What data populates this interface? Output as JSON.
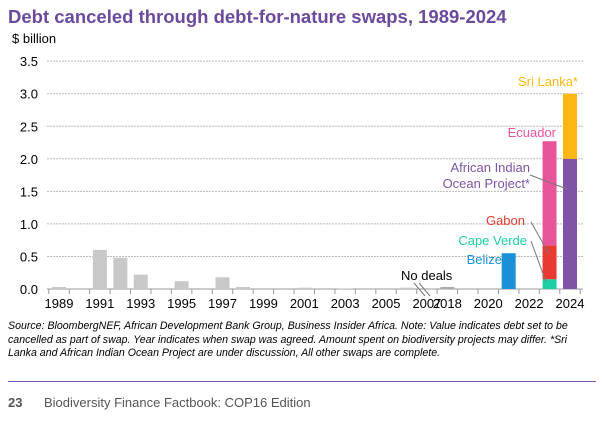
{
  "chart_data": {
    "type": "bar",
    "stacked": true,
    "title": "Debt canceled through debt-for-nature swaps, 1989-2024",
    "ylabel": "$ billion",
    "ylim": [
      0,
      3.5
    ],
    "yticks": [
      "0.0",
      "0.5",
      "1.0",
      "1.5",
      "2.0",
      "2.5",
      "3.0",
      "3.5"
    ],
    "grid": true,
    "categories": [
      "1989",
      "1990",
      "1991",
      "1992",
      "1993",
      "1994",
      "1995",
      "1996",
      "1997",
      "1998",
      "1999",
      "2000",
      "2001",
      "2002",
      "2003",
      "2004",
      "2005",
      "2006",
      "2007",
      "2018",
      "2019",
      "2020",
      "2021",
      "2022",
      "2023",
      "2024"
    ],
    "xtick_labels": [
      "1989",
      "1991",
      "1993",
      "1995",
      "1997",
      "1999",
      "2001",
      "2003",
      "2005",
      "2007",
      "2018",
      "2020",
      "2022",
      "2024"
    ],
    "axis_break_annotation": "No deals",
    "series": [
      {
        "name": "",
        "color": "#c8c8c8",
        "values": [
          0.03,
          0,
          0.6,
          0.48,
          0.22,
          0,
          0.12,
          0,
          0.18,
          0.03,
          0,
          0,
          0.02,
          0,
          0.01,
          0,
          0,
          0.02,
          0,
          0.03,
          0,
          0,
          0,
          0,
          0,
          0
        ]
      },
      {
        "name": "Belize",
        "color": "#1a90d8",
        "values": [
          0,
          0,
          0,
          0,
          0,
          0,
          0,
          0,
          0,
          0,
          0,
          0,
          0,
          0,
          0,
          0,
          0,
          0,
          0,
          0,
          0,
          0,
          0.55,
          0,
          0,
          0
        ]
      },
      {
        "name": "Cape Verde",
        "color": "#1ccfa5",
        "values": [
          0,
          0,
          0,
          0,
          0,
          0,
          0,
          0,
          0,
          0,
          0,
          0,
          0,
          0,
          0,
          0,
          0,
          0,
          0,
          0,
          0,
          0,
          0,
          0,
          0.15,
          0
        ]
      },
      {
        "name": "Gabon",
        "color": "#e83a30",
        "values": [
          0,
          0,
          0,
          0,
          0,
          0,
          0,
          0,
          0,
          0,
          0,
          0,
          0,
          0,
          0,
          0,
          0,
          0,
          0,
          0,
          0,
          0,
          0,
          0,
          0.52,
          0
        ]
      },
      {
        "name": "Ecuador",
        "color": "#e8559b",
        "values": [
          0,
          0,
          0,
          0,
          0,
          0,
          0,
          0,
          0,
          0,
          0,
          0,
          0,
          0,
          0,
          0,
          0,
          0,
          0,
          0,
          0,
          0,
          0,
          0,
          1.6,
          0
        ]
      },
      {
        "name": "African Indian Ocean Project*",
        "color": "#7f54a8",
        "values": [
          0,
          0,
          0,
          0,
          0,
          0,
          0,
          0,
          0,
          0,
          0,
          0,
          0,
          0,
          0,
          0,
          0,
          0,
          0,
          0,
          0,
          0,
          0,
          0,
          0,
          2.0
        ]
      },
      {
        "name": "Sri Lanka*",
        "color": "#fdb713",
        "values": [
          0,
          0,
          0,
          0,
          0,
          0,
          0,
          0,
          0,
          0,
          0,
          0,
          0,
          0,
          0,
          0,
          0,
          0,
          0,
          0,
          0,
          0,
          0,
          0,
          0,
          1.0
        ]
      }
    ]
  },
  "source": "Source: BloombergNEF, African Development Bank Group, Business Insider Africa. Note: Value indicates debt set to be cancelled as part of swap. Year indicates when swap was agreed. Amount spent on biodiversity projects may differ. *Sri Lanka and African Indian Ocean Project are under discussion, All other swaps are complete.",
  "footer": {
    "page": "23",
    "book": "Biodiversity Finance Factbook: COP16 Edition"
  }
}
